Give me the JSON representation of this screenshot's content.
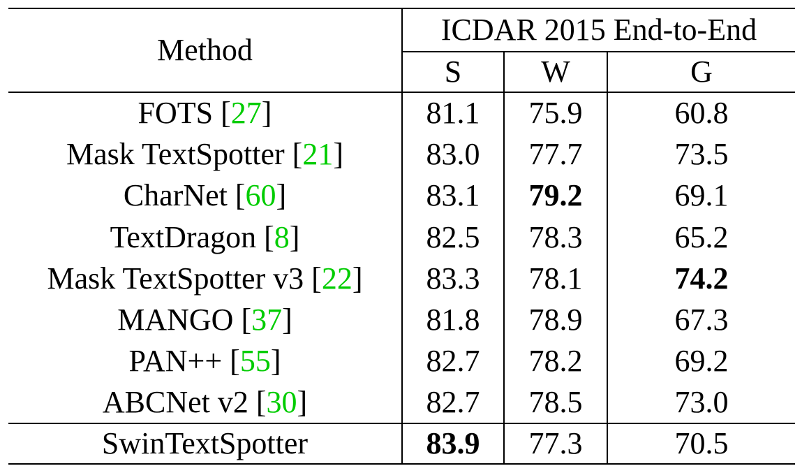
{
  "table": {
    "header": {
      "method": "Method",
      "group": "ICDAR 2015 End-to-End",
      "columns": [
        "S",
        "W",
        "G"
      ]
    },
    "rows": [
      {
        "name": "FOTS",
        "cite": "27",
        "s": "81.1",
        "w": "75.9",
        "g": "60.8",
        "bold": []
      },
      {
        "name": "Mask TextSpotter",
        "cite": "21",
        "s": "83.0",
        "w": "77.7",
        "g": "73.5",
        "bold": []
      },
      {
        "name": "CharNet",
        "cite": "60",
        "s": "83.1",
        "w": "79.2",
        "g": "69.1",
        "bold": [
          "w"
        ]
      },
      {
        "name": "TextDragon",
        "cite": "8",
        "s": "82.5",
        "w": "78.3",
        "g": "65.2",
        "bold": []
      },
      {
        "name": "Mask TextSpotter v3",
        "cite": "22",
        "s": "83.3",
        "w": "78.1",
        "g": "74.2",
        "bold": [
          "g"
        ]
      },
      {
        "name": "MANGO",
        "cite": "37",
        "s": "81.8",
        "w": "78.9",
        "g": "67.3",
        "bold": []
      },
      {
        "name": "PAN++",
        "cite": "55",
        "s": "82.7",
        "w": "78.2",
        "g": "69.2",
        "bold": []
      },
      {
        "name": "ABCNet v2",
        "cite": "30",
        "s": "82.7",
        "w": "78.5",
        "g": "73.0",
        "bold": []
      }
    ],
    "ours": {
      "name": "SwinTextSpotter",
      "s": "83.9",
      "w": "77.3",
      "g": "70.5",
      "bold": [
        "s"
      ]
    },
    "colors": {
      "citation": "#00cc00",
      "text": "#000000",
      "rule": "#000000"
    }
  }
}
